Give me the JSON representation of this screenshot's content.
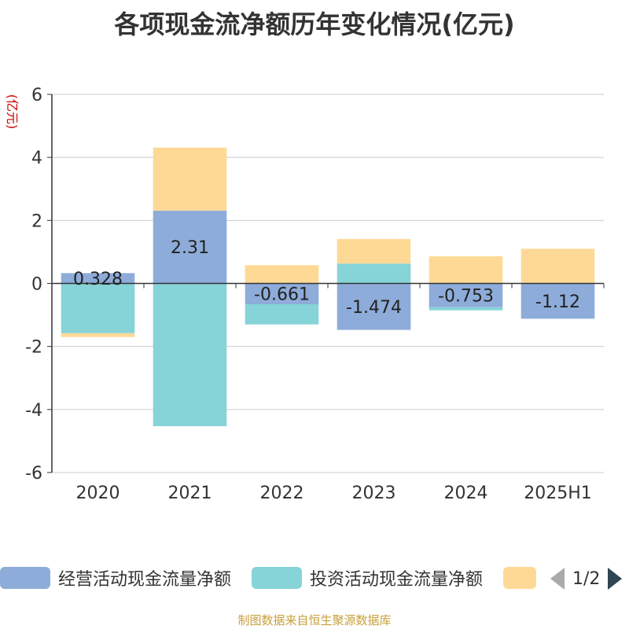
{
  "chart_data": {
    "type": "bar",
    "stacked": true,
    "title": "各项现金流净额历年变化情况(亿元)",
    "ylabel": "(亿元)",
    "xlabel": "",
    "categories": [
      "2020",
      "2021",
      "2022",
      "2023",
      "2024",
      "2025H1"
    ],
    "ylim": [
      -6,
      6
    ],
    "yticks": [
      -6,
      -4,
      -2,
      0,
      2,
      4,
      6
    ],
    "grid": true,
    "legend_position": "bottom",
    "series": [
      {
        "name": "经营活动现金流量净额",
        "color": "#8eacd9",
        "values": [
          0.328,
          2.31,
          -0.661,
          -1.474,
          -0.753,
          -1.12
        ],
        "labels": [
          "0.328",
          "2.31",
          "-0.661",
          "-1.474",
          "-0.753",
          "-1.12"
        ]
      },
      {
        "name": "投资活动现金流量净额",
        "color": "#86d4d8",
        "values": [
          -1.58,
          -4.53,
          -0.64,
          0.63,
          -0.1,
          0.0
        ]
      },
      {
        "name": "",
        "color": "#fed996",
        "values": [
          -0.12,
          2.0,
          0.58,
          0.78,
          0.86,
          1.1
        ]
      }
    ]
  },
  "legend": {
    "page_text": "1/2"
  },
  "source_note": "制图数据来自恒生聚源数据库",
  "colors": {
    "axis": "#333333",
    "grid": "#cccccc",
    "ylabel": "#cc0000"
  }
}
